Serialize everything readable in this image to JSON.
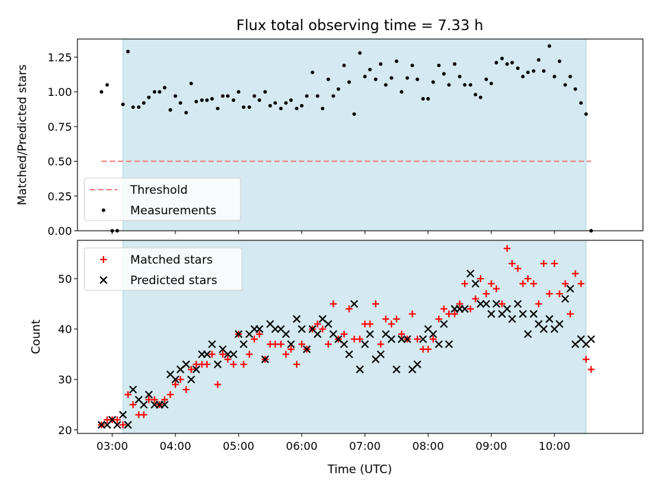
{
  "chart_data": [
    {
      "type": "scatter",
      "title": "Flux total observing time = 7.33 h",
      "xlabel": "",
      "ylabel": "Matched/Predicted stars",
      "x_unit": "UTC hours",
      "xlim": [
        2.45,
        11.4
      ],
      "ylim": [
        0.0,
        1.38
      ],
      "yticks": [
        0.0,
        0.25,
        0.5,
        0.75,
        1.0,
        1.25
      ],
      "ytick_labels": [
        "0.00",
        "0.25",
        "0.50",
        "0.75",
        "1.00",
        "1.25"
      ],
      "observing_window": [
        3.17,
        10.5
      ],
      "window_color": "#d4eaf0",
      "threshold": {
        "value": 0.5,
        "x_range": [
          2.83,
          10.58
        ],
        "color": "#f08080",
        "style": "dashed"
      },
      "legend": {
        "position": "lower-left",
        "entries": [
          {
            "label": "Threshold",
            "marker": "dashed-line",
            "color": "#f08080"
          },
          {
            "label": "Measurements",
            "marker": "dot",
            "color": "#000000"
          }
        ]
      },
      "series": [
        {
          "name": "Measurements",
          "color": "#000000",
          "marker": "dot",
          "x": [
            2.83,
            2.92,
            3.0,
            3.08,
            3.17,
            3.25,
            3.33,
            3.42,
            3.5,
            3.58,
            3.67,
            3.75,
            3.83,
            3.92,
            4.0,
            4.08,
            4.17,
            4.25,
            4.33,
            4.42,
            4.5,
            4.58,
            4.67,
            4.75,
            4.83,
            4.92,
            5.0,
            5.08,
            5.17,
            5.25,
            5.33,
            5.42,
            5.5,
            5.58,
            5.67,
            5.75,
            5.83,
            5.92,
            6.0,
            6.08,
            6.17,
            6.25,
            6.33,
            6.42,
            6.5,
            6.58,
            6.67,
            6.75,
            6.83,
            6.92,
            7.0,
            7.08,
            7.17,
            7.25,
            7.33,
            7.42,
            7.5,
            7.58,
            7.67,
            7.75,
            7.83,
            7.92,
            8.0,
            8.08,
            8.17,
            8.25,
            8.33,
            8.42,
            8.5,
            8.58,
            8.67,
            8.75,
            8.83,
            8.92,
            9.0,
            9.08,
            9.17,
            9.25,
            9.33,
            9.42,
            9.5,
            9.58,
            9.67,
            9.75,
            9.83,
            9.92,
            10.0,
            10.08,
            10.17,
            10.25,
            10.33,
            10.42,
            10.5,
            10.58
          ],
          "y": [
            1.0,
            1.05,
            0.0,
            0.0,
            0.91,
            1.29,
            0.89,
            0.89,
            0.92,
            0.96,
            1.0,
            1.0,
            1.03,
            0.87,
            0.97,
            0.92,
            0.85,
            1.06,
            0.93,
            0.94,
            0.94,
            0.95,
            0.88,
            0.97,
            0.97,
            0.94,
            1.0,
            0.89,
            0.89,
            0.97,
            0.94,
            1.0,
            0.9,
            0.92,
            0.88,
            0.92,
            0.94,
            0.88,
            0.9,
            0.97,
            1.14,
            0.97,
            0.88,
            1.09,
            0.97,
            1.02,
            1.19,
            1.07,
            0.84,
            1.28,
            1.11,
            1.16,
            1.09,
            1.2,
            1.05,
            1.1,
            1.22,
            1.0,
            1.1,
            1.19,
            1.09,
            0.95,
            0.95,
            1.07,
            1.19,
            1.13,
            1.05,
            1.2,
            1.11,
            1.05,
            1.05,
            0.98,
            0.96,
            1.09,
            1.06,
            1.21,
            1.24,
            1.2,
            1.21,
            1.17,
            1.11,
            1.14,
            1.15,
            1.23,
            1.15,
            1.33,
            1.11,
            1.22,
            1.05,
            1.11,
            1.02,
            0.92,
            0.84,
            0.0
          ]
        }
      ]
    },
    {
      "type": "scatter",
      "title": "",
      "xlabel": "Time (UTC)",
      "ylabel": "Count",
      "x_unit": "UTC hours",
      "xlim": [
        2.45,
        11.4
      ],
      "ylim": [
        19.3,
        57.6
      ],
      "yticks": [
        20,
        30,
        40,
        50
      ],
      "ytick_labels": [
        "20",
        "30",
        "40",
        "50"
      ],
      "xticks": [
        3,
        4,
        5,
        6,
        7,
        8,
        9,
        10
      ],
      "xtick_labels": [
        "03:00",
        "04:00",
        "05:00",
        "06:00",
        "07:00",
        "08:00",
        "09:00",
        "10:00"
      ],
      "observing_window": [
        3.17,
        10.5
      ],
      "window_color": "#d4eaf0",
      "legend": {
        "position": "upper-left",
        "entries": [
          {
            "label": "Matched stars",
            "marker": "plus",
            "color": "#ff0000"
          },
          {
            "label": "Predicted stars",
            "marker": "x",
            "color": "#000000"
          }
        ]
      },
      "series": [
        {
          "name": "Matched stars",
          "color": "#ff0000",
          "marker": "plus",
          "x": [
            2.83,
            2.92,
            3.0,
            3.08,
            3.17,
            3.25,
            3.33,
            3.42,
            3.5,
            3.58,
            3.67,
            3.75,
            3.83,
            3.92,
            4.0,
            4.08,
            4.17,
            4.25,
            4.33,
            4.42,
            4.5,
            4.58,
            4.67,
            4.75,
            4.83,
            4.92,
            5.0,
            5.08,
            5.17,
            5.25,
            5.33,
            5.42,
            5.5,
            5.58,
            5.67,
            5.75,
            5.83,
            5.92,
            6.0,
            6.08,
            6.17,
            6.25,
            6.33,
            6.42,
            6.5,
            6.58,
            6.67,
            6.75,
            6.83,
            6.92,
            7.0,
            7.08,
            7.17,
            7.25,
            7.33,
            7.42,
            7.5,
            7.58,
            7.67,
            7.75,
            7.83,
            7.92,
            8.0,
            8.08,
            8.17,
            8.25,
            8.33,
            8.42,
            8.5,
            8.58,
            8.67,
            8.75,
            8.83,
            8.92,
            9.0,
            9.08,
            9.17,
            9.25,
            9.33,
            9.42,
            9.5,
            9.58,
            9.67,
            9.75,
            9.83,
            9.92,
            10.0,
            10.08,
            10.17,
            10.25,
            10.33,
            10.42,
            10.5,
            10.58
          ],
          "y": [
            21,
            22,
            22,
            22,
            21,
            27,
            25,
            23,
            23,
            26,
            26,
            25,
            26,
            27,
            29,
            30,
            28,
            32,
            33,
            33,
            33,
            35,
            29,
            35,
            34,
            33,
            39,
            33,
            35,
            38,
            39,
            34,
            37,
            37,
            37,
            35,
            36,
            33,
            37,
            36,
            40,
            41,
            40,
            37,
            45,
            38,
            39,
            44,
            38,
            38,
            41,
            41,
            45,
            37,
            42,
            41,
            42,
            39,
            38,
            43,
            38,
            36,
            36,
            38,
            42,
            44,
            43,
            43,
            45,
            49,
            44,
            46,
            50,
            47,
            49,
            48,
            45,
            56,
            53,
            52,
            49,
            50,
            49,
            45,
            53,
            47,
            53,
            47,
            49,
            43,
            51,
            49,
            34,
            32
          ]
        },
        {
          "name": "Predicted stars",
          "color": "#000000",
          "marker": "x",
          "x": [
            2.83,
            2.92,
            3.0,
            3.08,
            3.17,
            3.25,
            3.33,
            3.42,
            3.5,
            3.58,
            3.67,
            3.75,
            3.83,
            3.92,
            4.0,
            4.08,
            4.17,
            4.25,
            4.33,
            4.42,
            4.5,
            4.58,
            4.67,
            4.75,
            4.83,
            4.92,
            5.0,
            5.08,
            5.17,
            5.25,
            5.33,
            5.42,
            5.5,
            5.58,
            5.67,
            5.75,
            5.83,
            5.92,
            6.0,
            6.08,
            6.17,
            6.25,
            6.33,
            6.42,
            6.5,
            6.58,
            6.67,
            6.75,
            6.83,
            6.92,
            7.0,
            7.08,
            7.17,
            7.25,
            7.33,
            7.42,
            7.5,
            7.58,
            7.67,
            7.75,
            7.83,
            7.92,
            8.0,
            8.08,
            8.17,
            8.25,
            8.33,
            8.42,
            8.5,
            8.58,
            8.67,
            8.75,
            8.83,
            8.92,
            9.0,
            9.08,
            9.17,
            9.25,
            9.33,
            9.42,
            9.5,
            9.58,
            9.67,
            9.75,
            9.83,
            9.92,
            10.0,
            10.08,
            10.17,
            10.25,
            10.33,
            10.42,
            10.5,
            10.58
          ],
          "y": [
            21,
            21,
            22,
            21,
            23,
            21,
            28,
            26,
            25,
            27,
            25,
            25,
            25,
            31,
            30,
            32,
            33,
            30,
            32,
            35,
            35,
            37,
            33,
            36,
            35,
            35,
            39,
            37,
            39,
            40,
            40,
            34,
            41,
            40,
            40,
            39,
            37,
            42,
            40,
            36,
            40,
            39,
            42,
            41,
            39,
            38,
            37,
            35,
            45,
            32,
            37,
            39,
            34,
            35,
            39,
            38,
            32,
            38,
            38,
            32,
            33,
            38,
            40,
            39,
            37,
            41,
            37,
            44,
            44,
            44,
            51,
            49,
            45,
            45,
            43,
            45,
            43,
            44,
            42,
            45,
            43,
            39,
            43,
            41,
            40,
            42,
            40,
            41,
            46,
            48,
            37,
            38,
            37,
            38
          ]
        }
      ]
    }
  ]
}
